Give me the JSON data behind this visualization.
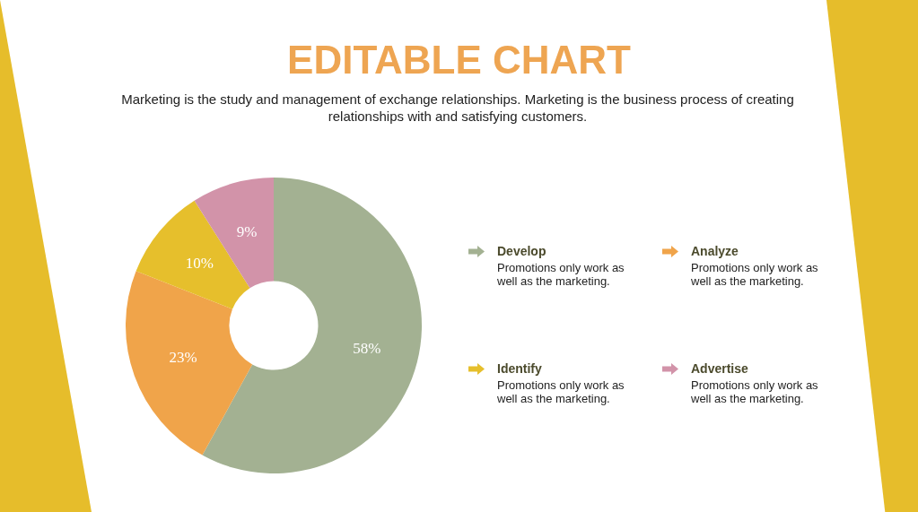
{
  "chart_data": {
    "type": "donut",
    "title": "EDITABLE CHART",
    "subtitle": "Marketing is the study and management of exchange relationships. Marketing is the business process of creating relationships with and satisfying customers.",
    "categories": [
      "Develop",
      "Analyze",
      "Identify",
      "Advertise"
    ],
    "values": [
      58,
      23,
      10,
      9
    ],
    "colors": [
      "#a3b192",
      "#f0a44a",
      "#e6bf2c",
      "#d293a9"
    ],
    "value_labels": [
      "58%",
      "23%",
      "10%",
      "9%"
    ],
    "legend": "right",
    "annotations": [
      "Promotions only work as well as the marketing.",
      "Promotions only work as well as the marketing.",
      "Promotions only work as well as the marketing.",
      "Promotions only work as well as the marketing."
    ]
  }
}
